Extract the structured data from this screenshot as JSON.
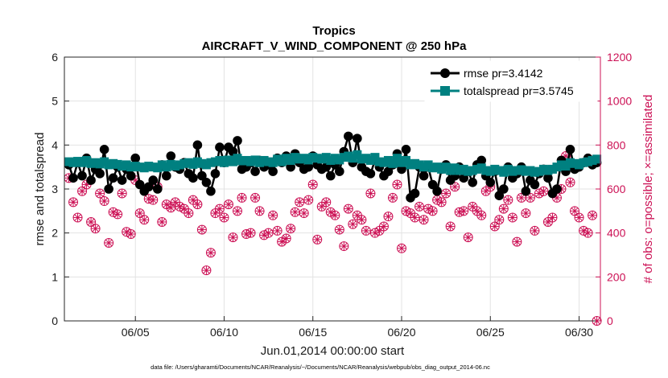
{
  "chart_data": {
    "type": "line",
    "title": "Tropics",
    "subtitle": "AIRCRAFT_V_WIND_COMPONENT @ 250 hPa",
    "xlabel": "Jun.01,2014 00:00:00 start",
    "ylabel": "rmse and totalspread",
    "y2label": "# of obs: o=possible; ×=assimilated",
    "footnote": "data file: /Users/gharamti/Documents/NCAR/Reanalysis/~/Documents/NCAR/Reanalysis/webpub/obs_diag_output_2014-06.nc",
    "xlim": [
      1.0,
      31.2
    ],
    "ylim": [
      0,
      6
    ],
    "y2lim": [
      0,
      1200
    ],
    "xticks": [
      5,
      10,
      15,
      20,
      25,
      30
    ],
    "xticklabels": [
      "06/05",
      "06/10",
      "06/15",
      "06/20",
      "06/25",
      "06/30"
    ],
    "yticks": [
      0,
      1,
      2,
      3,
      4,
      5,
      6
    ],
    "yticklabels": [
      "0",
      "1",
      "2",
      "3",
      "4",
      "5",
      "6"
    ],
    "y2ticks": [
      0,
      200,
      400,
      600,
      800,
      1000,
      1200
    ],
    "y2ticklabels": [
      "0",
      "200",
      "400",
      "600",
      "800",
      "1000",
      "1200"
    ],
    "legend": {
      "position": "top-right",
      "entries": [
        "rmse pr=3.4142",
        "totalspread pr=3.5745"
      ]
    },
    "x": [
      1.25,
      1.5,
      1.75,
      2.0,
      2.25,
      2.5,
      2.75,
      3.0,
      3.25,
      3.5,
      3.75,
      4.0,
      4.25,
      4.5,
      4.75,
      5.0,
      5.25,
      5.5,
      5.75,
      6.0,
      6.25,
      6.5,
      6.75,
      7.0,
      7.25,
      7.5,
      7.75,
      8.0,
      8.25,
      8.5,
      8.75,
      9.0,
      9.25,
      9.5,
      9.75,
      10.0,
      10.25,
      10.5,
      10.75,
      11.0,
      11.25,
      11.5,
      11.75,
      12.0,
      12.25,
      12.5,
      12.75,
      13.0,
      13.25,
      13.5,
      13.75,
      14.0,
      14.25,
      14.5,
      14.75,
      15.0,
      15.25,
      15.5,
      15.75,
      16.0,
      16.25,
      16.5,
      16.75,
      17.0,
      17.25,
      17.5,
      17.75,
      18.0,
      18.25,
      18.5,
      18.75,
      19.0,
      19.25,
      19.5,
      19.75,
      20.0,
      20.25,
      20.5,
      20.75,
      21.0,
      21.25,
      21.5,
      21.75,
      22.0,
      22.25,
      22.5,
      22.75,
      23.0,
      23.25,
      23.5,
      23.75,
      24.0,
      24.25,
      24.5,
      24.75,
      25.0,
      25.25,
      25.5,
      25.75,
      26.0,
      26.25,
      26.5,
      26.75,
      27.0,
      27.25,
      27.5,
      27.75,
      28.0,
      28.25,
      28.5,
      28.75,
      29.0,
      29.25,
      29.5,
      29.75,
      30.0,
      30.25,
      30.5,
      30.75,
      31.0
    ],
    "series": [
      {
        "name": "rmse pr=3.4142",
        "color": "#000000",
        "marker": "circle",
        "values": [
          3.55,
          3.25,
          3.6,
          3.3,
          3.7,
          3.2,
          3.45,
          3.35,
          3.9,
          3.0,
          3.25,
          3.5,
          3.2,
          3.45,
          3.3,
          3.7,
          3.1,
          2.95,
          3.05,
          3.2,
          3.0,
          3.55,
          3.3,
          3.75,
          3.5,
          3.45,
          3.6,
          3.35,
          3.25,
          4.0,
          3.3,
          3.15,
          2.95,
          3.35,
          3.95,
          3.6,
          3.95,
          3.85,
          4.1,
          3.45,
          3.5,
          3.6,
          3.4,
          3.65,
          3.5,
          3.55,
          3.4,
          3.7,
          3.6,
          3.75,
          3.5,
          3.8,
          3.6,
          3.45,
          3.5,
          3.75,
          3.55,
          3.45,
          3.5,
          3.3,
          3.55,
          3.4,
          3.85,
          4.2,
          3.6,
          4.15,
          3.5,
          3.4,
          3.35,
          3.65,
          3.5,
          3.3,
          3.4,
          3.55,
          3.8,
          3.45,
          3.9,
          2.8,
          2.9,
          3.5,
          3.3,
          3.5,
          3.1,
          2.95,
          3.45,
          3.55,
          3.2,
          3.3,
          3.5,
          3.25,
          3.4,
          3.15,
          3.55,
          3.65,
          3.3,
          3.15,
          3.4,
          2.85,
          3.0,
          3.5,
          3.25,
          3.35,
          3.5,
          2.95,
          3.2,
          3.1,
          3.35,
          3.45,
          3.25,
          2.9,
          3.0,
          3.65,
          3.4,
          3.9,
          3.45,
          3.5,
          3.6,
          3.7,
          3.55,
          3.6
        ]
      },
      {
        "name": "totalspread pr=3.5745",
        "color": "#008080",
        "marker": "square",
        "values": [
          3.62,
          3.6,
          3.63,
          3.6,
          3.65,
          3.58,
          3.6,
          3.57,
          3.62,
          3.55,
          3.58,
          3.56,
          3.52,
          3.55,
          3.5,
          3.52,
          3.5,
          3.48,
          3.52,
          3.5,
          3.48,
          3.55,
          3.5,
          3.56,
          3.52,
          3.55,
          3.58,
          3.6,
          3.56,
          3.62,
          3.58,
          3.55,
          3.6,
          3.62,
          3.65,
          3.6,
          3.66,
          3.62,
          3.7,
          3.64,
          3.65,
          3.62,
          3.66,
          3.6,
          3.65,
          3.62,
          3.6,
          3.68,
          3.62,
          3.7,
          3.65,
          3.72,
          3.68,
          3.7,
          3.66,
          3.72,
          3.7,
          3.68,
          3.72,
          3.65,
          3.7,
          3.66,
          3.72,
          3.75,
          3.7,
          3.78,
          3.68,
          3.7,
          3.65,
          3.72,
          3.62,
          3.6,
          3.65,
          3.58,
          3.7,
          3.6,
          3.65,
          3.55,
          3.58,
          3.55,
          3.5,
          3.55,
          3.48,
          3.5,
          3.45,
          3.5,
          3.42,
          3.48,
          3.42,
          3.45,
          3.4,
          3.42,
          3.45,
          3.48,
          3.42,
          3.4,
          3.45,
          3.42,
          3.38,
          3.45,
          3.4,
          3.42,
          3.44,
          3.4,
          3.42,
          3.38,
          3.4,
          3.45,
          3.42,
          3.45,
          3.5,
          3.55,
          3.52,
          3.6,
          3.58,
          3.55,
          3.6,
          3.62,
          3.65,
          3.68
        ]
      },
      {
        "name": "# of obs possible",
        "axis": "right",
        "color": "#cc1155",
        "marker": "circle-open",
        "values": [
          650,
          540,
          470,
          590,
          620,
          450,
          420,
          580,
          545,
          355,
          495,
          485,
          580,
          405,
          395,
          640,
          490,
          460,
          555,
          550,
          610,
          450,
          530,
          515,
          540,
          520,
          510,
          490,
          550,
          530,
          415,
          230,
          310,
          490,
          510,
          470,
          530,
          380,
          500,
          560,
          395,
          400,
          560,
          500,
          390,
          400,
          480,
          410,
          360,
          375,
          420,
          495,
          540,
          490,
          550,
          620,
          370,
          520,
          540,
          495,
          480,
          415,
          340,
          510,
          440,
          480,
          460,
          410,
          580,
          400,
          410,
          430,
          475,
          560,
          620,
          330,
          500,
          490,
          470,
          520,
          460,
          510,
          500,
          550,
          540,
          580,
          430,
          610,
          495,
          500,
          380,
          520,
          500,
          480,
          590,
          610,
          430,
          460,
          510,
          550,
          470,
          360,
          560,
          490,
          560,
          410,
          580,
          590,
          450,
          470,
          560,
          600,
          750,
          630,
          500,
          470,
          410,
          400,
          480,
          0
        ]
      },
      {
        "name": "# of obs assimilated",
        "axis": "right",
        "color": "#cc1155",
        "marker": "cross",
        "values": [
          650,
          540,
          470,
          590,
          620,
          450,
          420,
          580,
          545,
          355,
          495,
          485,
          580,
          405,
          395,
          640,
          490,
          460,
          555,
          550,
          610,
          450,
          530,
          515,
          540,
          520,
          510,
          490,
          550,
          530,
          415,
          230,
          310,
          490,
          510,
          470,
          530,
          380,
          500,
          560,
          395,
          400,
          560,
          500,
          390,
          400,
          480,
          410,
          360,
          375,
          420,
          495,
          540,
          490,
          550,
          620,
          370,
          520,
          540,
          495,
          480,
          415,
          340,
          510,
          440,
          480,
          460,
          410,
          580,
          400,
          410,
          430,
          475,
          560,
          620,
          330,
          500,
          490,
          470,
          520,
          460,
          510,
          500,
          550,
          540,
          580,
          430,
          610,
          495,
          500,
          380,
          520,
          500,
          480,
          590,
          610,
          430,
          460,
          510,
          550,
          470,
          360,
          560,
          490,
          560,
          410,
          580,
          590,
          450,
          470,
          560,
          600,
          750,
          630,
          500,
          470,
          410,
          400,
          480,
          0
        ]
      }
    ]
  }
}
